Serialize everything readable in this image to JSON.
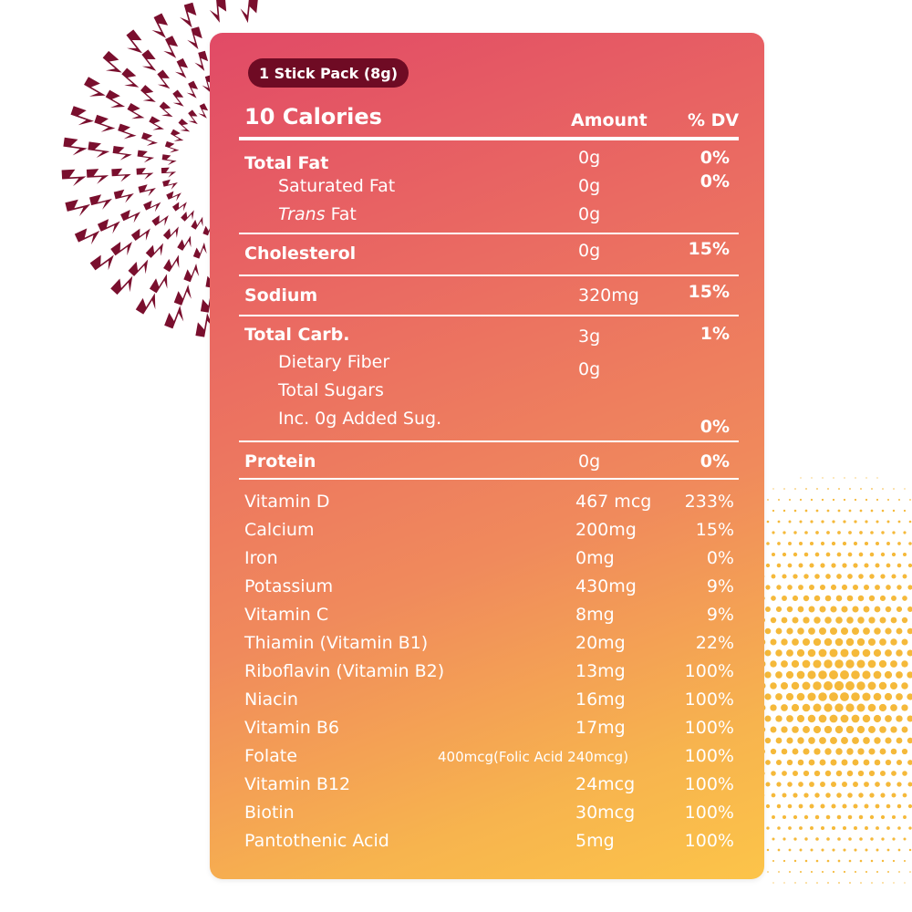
{
  "serving": "1 Stick Pack (8g)",
  "calories": "10 Calories",
  "headers": {
    "amount": "Amount",
    "dv": "% DV"
  },
  "nutrients": [
    {
      "label": "Total Fat",
      "amount": "0g",
      "dv": "0%"
    },
    {
      "label": "Saturated Fat",
      "amount": "0g",
      "dv": "0%"
    },
    {
      "label": "Trans",
      "suffix": " Fat",
      "amount": "0g",
      "dv": ""
    },
    {
      "label": "Cholesterol",
      "amount": "0g",
      "dv": "15%"
    },
    {
      "label": "Sodium",
      "amount": "320mg",
      "dv": "15%"
    },
    {
      "label": "Total  Carb.",
      "amount": "3g",
      "dv": "1%"
    },
    {
      "label": "Dietary Fiber",
      "amount": "0g",
      "dv": ""
    },
    {
      "label": "Total Sugars",
      "amount": "",
      "dv": ""
    },
    {
      "label": "Inc. 0g Added Sug.",
      "amount": "",
      "dv": "0%"
    },
    {
      "label": "Protein",
      "amount": "0g",
      "dv": "0%"
    }
  ],
  "vitamins": [
    {
      "label": "Vitamin D",
      "amount": "467 mcg",
      "dv": "233%"
    },
    {
      "label": "Calcium",
      "amount": "200mg",
      "dv": "15%"
    },
    {
      "label": "Iron",
      "amount": "0mg",
      "dv": "0%"
    },
    {
      "label": "Potassium",
      "amount": "430mg",
      "dv": "9%"
    },
    {
      "label": "Vitamin C",
      "amount": "8mg",
      "dv": "9%"
    },
    {
      "label": "Thiamin (Vitamin B1)",
      "amount": "20mg",
      "dv": "22%"
    },
    {
      "label": "Riboflavin (Vitamin B2)",
      "amount": "13mg",
      "dv": "100%"
    },
    {
      "label": "Niacin",
      "amount": "16mg",
      "dv": "100%"
    },
    {
      "label": "Vitamin B6",
      "amount": "17mg",
      "dv": "100%"
    },
    {
      "label": "Folate",
      "amount": "400mcg(Folic Acid 240mcg)",
      "dv": "100%"
    },
    {
      "label": "Vitamin B12",
      "amount": "24mcg",
      "dv": "100%"
    },
    {
      "label": "Biotin",
      "amount": "30mcg",
      "dv": "100%"
    },
    {
      "label": "Pantothenic Acid",
      "amount": "5mg",
      "dv": "100%"
    }
  ],
  "colors": {
    "pill": "#6f0b24",
    "burst": "#7a0f2e",
    "dots": "#f5b93a",
    "gradient_top": "#e14a66",
    "gradient_bottom": "#fcc449"
  }
}
